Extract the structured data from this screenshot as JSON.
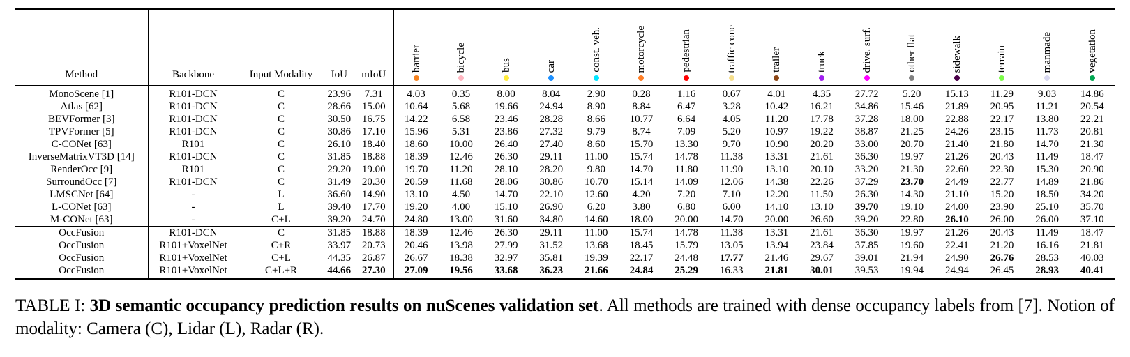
{
  "table": {
    "headers": {
      "method": "Method",
      "backbone": "Backbone",
      "modality": "Input Modality",
      "iou": "IoU",
      "miou": "mIoU"
    },
    "classes": [
      {
        "name": "barrier",
        "color": "#F58220"
      },
      {
        "name": "bicycle",
        "color": "#FFB6C1"
      },
      {
        "name": "bus",
        "color": "#FFEB3B"
      },
      {
        "name": "car",
        "color": "#1E90FF"
      },
      {
        "name": "const. veh.",
        "color": "#00E5FF"
      },
      {
        "name": "motorcycle",
        "color": "#FF7F27"
      },
      {
        "name": "pedestrian",
        "color": "#FF0000"
      },
      {
        "name": "traffic cone",
        "color": "#F5DE8C"
      },
      {
        "name": "trailer",
        "color": "#8B4513"
      },
      {
        "name": "truck",
        "color": "#A020F0"
      },
      {
        "name": "drive. surf.",
        "color": "#FF00FF"
      },
      {
        "name": "other flat",
        "color": "#808080"
      },
      {
        "name": "sidewalk",
        "color": "#4B0049"
      },
      {
        "name": "terrain",
        "color": "#7CFC4A"
      },
      {
        "name": "manmade",
        "color": "#D8D8F0"
      },
      {
        "name": "vegetation",
        "color": "#00A651"
      }
    ],
    "baseline_rows": [
      {
        "method": "MonoScene [1]",
        "backbone": "R101-DCN",
        "modality": "C",
        "iou": "23.96",
        "miou": "7.31",
        "values": [
          "4.03",
          "0.35",
          "8.00",
          "8.04",
          "2.90",
          "0.28",
          "1.16",
          "0.67",
          "4.01",
          "4.35",
          "27.72",
          "5.20",
          "15.13",
          "11.29",
          "9.03",
          "14.86"
        ],
        "bold": []
      },
      {
        "method": "Atlas [62]",
        "backbone": "R101-DCN",
        "modality": "C",
        "iou": "28.66",
        "miou": "15.00",
        "values": [
          "10.64",
          "5.68",
          "19.66",
          "24.94",
          "8.90",
          "8.84",
          "6.47",
          "3.28",
          "10.42",
          "16.21",
          "34.86",
          "15.46",
          "21.89",
          "20.95",
          "11.21",
          "20.54"
        ],
        "bold": []
      },
      {
        "method": "BEVFormer [3]",
        "backbone": "R101-DCN",
        "modality": "C",
        "iou": "30.50",
        "miou": "16.75",
        "values": [
          "14.22",
          "6.58",
          "23.46",
          "28.28",
          "8.66",
          "10.77",
          "6.64",
          "4.05",
          "11.20",
          "17.78",
          "37.28",
          "18.00",
          "22.88",
          "22.17",
          "13.80",
          "22.21"
        ],
        "bold": []
      },
      {
        "method": "TPVFormer [5]",
        "backbone": "R101-DCN",
        "modality": "C",
        "iou": "30.86",
        "miou": "17.10",
        "values": [
          "15.96",
          "5.31",
          "23.86",
          "27.32",
          "9.79",
          "8.74",
          "7.09",
          "5.20",
          "10.97",
          "19.22",
          "38.87",
          "21.25",
          "24.26",
          "23.15",
          "11.73",
          "20.81"
        ],
        "bold": []
      },
      {
        "method": "C-CONet [63]",
        "backbone": "R101",
        "modality": "C",
        "iou": "26.10",
        "miou": "18.40",
        "values": [
          "18.60",
          "10.00",
          "26.40",
          "27.40",
          "8.60",
          "15.70",
          "13.30",
          "9.70",
          "10.90",
          "20.20",
          "33.00",
          "20.70",
          "21.40",
          "21.80",
          "14.70",
          "21.30"
        ],
        "bold": []
      },
      {
        "method": "InverseMatrixVT3D [14]",
        "backbone": "R101-DCN",
        "modality": "C",
        "iou": "31.85",
        "miou": "18.88",
        "values": [
          "18.39",
          "12.46",
          "26.30",
          "29.11",
          "11.00",
          "15.74",
          "14.78",
          "11.38",
          "13.31",
          "21.61",
          "36.30",
          "19.97",
          "21.26",
          "20.43",
          "11.49",
          "18.47"
        ],
        "bold": []
      },
      {
        "method": "RenderOcc [9]",
        "backbone": "R101",
        "modality": "C",
        "iou": "29.20",
        "miou": "19.00",
        "values": [
          "19.70",
          "11.20",
          "28.10",
          "28.20",
          "9.80",
          "14.70",
          "11.80",
          "11.90",
          "13.10",
          "20.10",
          "33.20",
          "21.30",
          "22.60",
          "22.30",
          "15.30",
          "20.90"
        ],
        "bold": []
      },
      {
        "method": "SurroundOcc [7]",
        "backbone": "R101-DCN",
        "modality": "C",
        "iou": "31.49",
        "miou": "20.30",
        "values": [
          "20.59",
          "11.68",
          "28.06",
          "30.86",
          "10.70",
          "15.14",
          "14.09",
          "12.06",
          "14.38",
          "22.26",
          "37.29",
          "23.70",
          "24.49",
          "22.77",
          "14.89",
          "21.86"
        ],
        "bold": [
          11
        ]
      },
      {
        "method": "LMSCNet [64]",
        "backbone": "-",
        "modality": "L",
        "iou": "36.60",
        "miou": "14.90",
        "values": [
          "13.10",
          "4.50",
          "14.70",
          "22.10",
          "12.60",
          "4.20",
          "7.20",
          "7.10",
          "12.20",
          "11.50",
          "26.30",
          "14.30",
          "21.10",
          "15.20",
          "18.50",
          "34.20"
        ],
        "bold": []
      },
      {
        "method": "L-CONet [63]",
        "backbone": "-",
        "modality": "L",
        "iou": "39.40",
        "miou": "17.70",
        "values": [
          "19.20",
          "4.00",
          "15.10",
          "26.90",
          "6.20",
          "3.80",
          "6.80",
          "6.00",
          "14.10",
          "13.10",
          "39.70",
          "19.10",
          "24.00",
          "23.90",
          "25.10",
          "35.70"
        ],
        "bold": [
          10
        ]
      },
      {
        "method": "M-CONet [63]",
        "backbone": "-",
        "modality": "C+L",
        "iou": "39.20",
        "miou": "24.70",
        "values": [
          "24.80",
          "13.00",
          "31.60",
          "34.80",
          "14.60",
          "18.00",
          "20.00",
          "14.70",
          "20.00",
          "26.60",
          "39.20",
          "22.80",
          "26.10",
          "26.00",
          "26.00",
          "37.10"
        ],
        "bold": [
          12
        ]
      }
    ],
    "ours_rows": [
      {
        "method": "OccFusion",
        "backbone": "R101-DCN",
        "modality": "C",
        "iou": "31.85",
        "miou": "18.88",
        "values": [
          "18.39",
          "12.46",
          "26.30",
          "29.11",
          "11.00",
          "15.74",
          "14.78",
          "11.38",
          "13.31",
          "21.61",
          "36.30",
          "19.97",
          "21.26",
          "20.43",
          "11.49",
          "18.47"
        ],
        "bold": []
      },
      {
        "method": "OccFusion",
        "backbone": "R101+VoxelNet",
        "modality": "C+R",
        "iou": "33.97",
        "miou": "20.73",
        "values": [
          "20.46",
          "13.98",
          "27.99",
          "31.52",
          "13.68",
          "18.45",
          "15.79",
          "13.05",
          "13.94",
          "23.84",
          "37.85",
          "19.60",
          "22.41",
          "21.20",
          "16.16",
          "21.81"
        ],
        "bold": []
      },
      {
        "method": "OccFusion",
        "backbone": "R101+VoxelNet",
        "modality": "C+L",
        "iou": "44.35",
        "miou": "26.87",
        "values": [
          "26.67",
          "18.38",
          "32.97",
          "35.81",
          "19.39",
          "22.17",
          "24.48",
          "17.77",
          "21.46",
          "29.67",
          "39.01",
          "21.94",
          "24.90",
          "26.76",
          "28.53",
          "40.03"
        ],
        "bold": [
          7,
          13
        ]
      },
      {
        "method": "OccFusion",
        "backbone": "R101+VoxelNet",
        "modality": "C+L+R",
        "iou": "44.66",
        "miou": "27.30",
        "values": [
          "27.09",
          "19.56",
          "33.68",
          "36.23",
          "21.66",
          "24.84",
          "25.29",
          "16.33",
          "21.81",
          "30.01",
          "39.53",
          "19.94",
          "24.94",
          "26.45",
          "28.93",
          "40.41"
        ],
        "bold": [
          0,
          1,
          2,
          3,
          4,
          5,
          6,
          8,
          9,
          14,
          15
        ],
        "bold_iou": true,
        "bold_miou": true
      }
    ]
  },
  "caption": {
    "label": "TABLE I: ",
    "bold_title": "3D semantic occupancy prediction results on nuScenes validation set",
    "rest": ". All methods are trained with dense occupancy labels from [7]. Notion of modality: Camera (C), Lidar (L), Radar (R)."
  }
}
